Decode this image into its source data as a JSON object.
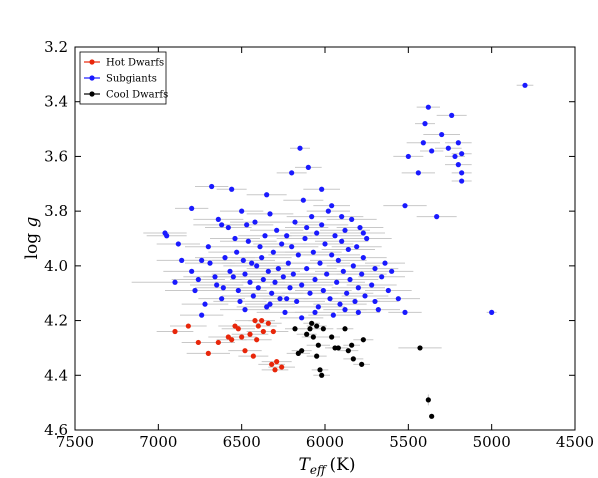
{
  "chart_data": {
    "type": "scatter",
    "title": "",
    "xlabel_symbol": "T",
    "xlabel_subscript": "eff",
    "xlabel_unit": "(K)",
    "ylabel_text": "log ",
    "ylabel_symbol": "g",
    "xlim": [
      7500,
      4500
    ],
    "ylim": [
      3.2,
      4.6
    ],
    "x_inverted": true,
    "y_inverted": true,
    "x_ticks": [
      "7500",
      "7000",
      "6500",
      "6000",
      "5500",
      "5000",
      "4500"
    ],
    "y_ticks": [
      "3.2",
      "3.4",
      "3.6",
      "3.8",
      "4.0",
      "4.2",
      "4.4",
      "4.6"
    ],
    "x_tick_values": [
      7500,
      7000,
      6500,
      6000,
      5500,
      5000,
      4500
    ],
    "y_tick_values": [
      3.2,
      3.4,
      3.6,
      3.8,
      4.0,
      4.2,
      4.4,
      4.6
    ],
    "grid": false,
    "legend_position": "top-left",
    "error_bar_color": "#c8c8c8",
    "series": [
      {
        "name": "Hot Dwarfs",
        "color": "#e8260a",
        "points": [
          [
            6900,
            4.24
          ],
          [
            6820,
            4.22
          ],
          [
            6760,
            4.28
          ],
          [
            6700,
            4.32
          ],
          [
            6640,
            4.28
          ],
          [
            6580,
            4.26
          ],
          [
            6560,
            4.27
          ],
          [
            6540,
            4.22
          ],
          [
            6520,
            4.23
          ],
          [
            6500,
            4.26
          ],
          [
            6480,
            4.31
          ],
          [
            6450,
            4.25
          ],
          [
            6430,
            4.33
          ],
          [
            6420,
            4.2
          ],
          [
            6410,
            4.27
          ],
          [
            6400,
            4.22
          ],
          [
            6380,
            4.2
          ],
          [
            6370,
            4.24
          ],
          [
            6340,
            4.21
          ],
          [
            6320,
            4.36
          ],
          [
            6310,
            4.24
          ],
          [
            6300,
            4.38
          ],
          [
            6290,
            4.35
          ],
          [
            6260,
            4.37
          ]
        ],
        "xerr": [
          110,
          110,
          100,
          130,
          100,
          120,
          90,
          100,
          100,
          90,
          100,
          110,
          90,
          120,
          90,
          110,
          80,
          100,
          80,
          80,
          90,
          80,
          90,
          80
        ]
      },
      {
        "name": "Subgiants",
        "color": "#1a1aff",
        "points": [
          [
            6960,
            3.88
          ],
          [
            6950,
            3.89
          ],
          [
            6900,
            4.06
          ],
          [
            6880,
            3.92
          ],
          [
            6860,
            3.98
          ],
          [
            6800,
            4.02
          ],
          [
            6800,
            3.79
          ],
          [
            6780,
            4.09
          ],
          [
            6760,
            4.05
          ],
          [
            6740,
            3.98
          ],
          [
            6720,
            4.14
          ],
          [
            6700,
            3.93
          ],
          [
            6690,
            3.99
          ],
          [
            6680,
            3.71
          ],
          [
            6660,
            4.04
          ],
          [
            6650,
            4.07
          ],
          [
            6640,
            3.83
          ],
          [
            6620,
            3.85
          ],
          [
            6610,
            4.08
          ],
          [
            6600,
            3.97
          ],
          [
            6580,
            3.86
          ],
          [
            6570,
            4.02
          ],
          [
            6560,
            3.72
          ],
          [
            6550,
            4.04
          ],
          [
            6540,
            3.9
          ],
          [
            6530,
            3.95
          ],
          [
            6520,
            4.09
          ],
          [
            6510,
            4.13
          ],
          [
            6500,
            3.8
          ],
          [
            6490,
            3.98
          ],
          [
            6480,
            4.03
          ],
          [
            6470,
            3.85
          ],
          [
            6460,
            3.91
          ],
          [
            6450,
            4.06
          ],
          [
            6440,
            3.99
          ],
          [
            6430,
            4.11
          ],
          [
            6420,
            3.84
          ],
          [
            6410,
            4.0
          ],
          [
            6400,
            4.08
          ],
          [
            6390,
            3.93
          ],
          [
            6380,
            3.97
          ],
          [
            6370,
            4.05
          ],
          [
            6360,
            3.89
          ],
          [
            6350,
            4.15
          ],
          [
            6340,
            4.02
          ],
          [
            6330,
            3.81
          ],
          [
            6320,
            4.1
          ],
          [
            6310,
            3.95
          ],
          [
            6300,
            4.06
          ],
          [
            6290,
            3.87
          ],
          [
            6280,
            4.01
          ],
          [
            6270,
            4.12
          ],
          [
            6260,
            3.92
          ],
          [
            6250,
            4.04
          ],
          [
            6240,
            4.17
          ],
          [
            6230,
            3.89
          ],
          [
            6220,
            3.99
          ],
          [
            6210,
            4.08
          ],
          [
            6200,
            3.93
          ],
          [
            6190,
            4.03
          ],
          [
            6180,
            3.84
          ],
          [
            6170,
            4.13
          ],
          [
            6160,
            3.96
          ],
          [
            6150,
            3.57
          ],
          [
            6140,
            4.07
          ],
          [
            6130,
            3.76
          ],
          [
            6120,
            3.9
          ],
          [
            6110,
            4.01
          ],
          [
            6100,
            3.64
          ],
          [
            6090,
            4.1
          ],
          [
            6080,
            3.82
          ],
          [
            6070,
            3.95
          ],
          [
            6060,
            4.05
          ],
          [
            6050,
            3.88
          ],
          [
            6040,
            4.15
          ],
          [
            6030,
            3.99
          ],
          [
            6020,
            3.85
          ],
          [
            6010,
            4.09
          ],
          [
            6000,
            3.92
          ],
          [
            5990,
            4.03
          ],
          [
            5980,
            3.8
          ],
          [
            5970,
            4.12
          ],
          [
            5960,
            3.96
          ],
          [
            5950,
            4.18
          ],
          [
            5940,
            3.89
          ],
          [
            5930,
            4.06
          ],
          [
            5920,
            3.98
          ],
          [
            5910,
            4.14
          ],
          [
            5900,
            3.91
          ],
          [
            5890,
            4.02
          ],
          [
            5880,
            3.87
          ],
          [
            5870,
            4.1
          ],
          [
            5860,
            3.94
          ],
          [
            5850,
            4.05
          ],
          [
            5840,
            3.83
          ],
          [
            5830,
            4.0
          ],
          [
            5820,
            4.13
          ],
          [
            5810,
            3.93
          ],
          [
            5800,
            4.08
          ],
          [
            5790,
            3.86
          ],
          [
            5780,
            4.03
          ],
          [
            5770,
            3.97
          ],
          [
            5760,
            4.11
          ],
          [
            5750,
            3.9
          ],
          [
            5720,
            4.07
          ],
          [
            5700,
            4.01
          ],
          [
            5680,
            4.16
          ],
          [
            5660,
            4.04
          ],
          [
            5640,
            3.99
          ],
          [
            5620,
            4.09
          ],
          [
            5600,
            4.02
          ],
          [
            5560,
            4.12
          ],
          [
            5520,
            4.17
          ],
          [
            5520,
            3.78
          ],
          [
            5500,
            3.6
          ],
          [
            5440,
            3.66
          ],
          [
            5410,
            3.55
          ],
          [
            5400,
            3.48
          ],
          [
            5380,
            3.42
          ],
          [
            5360,
            3.58
          ],
          [
            5330,
            3.82
          ],
          [
            5300,
            3.52
          ],
          [
            5260,
            3.57
          ],
          [
            5240,
            3.45
          ],
          [
            5220,
            3.6
          ],
          [
            5200,
            3.55
          ],
          [
            5200,
            3.63
          ],
          [
            5180,
            3.59
          ],
          [
            5180,
            3.66
          ],
          [
            5180,
            3.69
          ],
          [
            5000,
            4.17
          ],
          [
            4800,
            3.34
          ],
          [
            6020,
            3.72
          ],
          [
            5960,
            3.78
          ],
          [
            6200,
            3.66
          ],
          [
            6350,
            3.74
          ],
          [
            5880,
            4.16
          ],
          [
            6060,
            4.17
          ],
          [
            6140,
            4.19
          ],
          [
            6480,
            4.16
          ],
          [
            6620,
            4.12
          ],
          [
            6740,
            4.18
          ],
          [
            5700,
            4.13
          ],
          [
            5800,
            4.17
          ],
          [
            5900,
            3.82
          ],
          [
            5770,
            3.88
          ],
          [
            6330,
            4.14
          ],
          [
            6230,
            4.12
          ],
          [
            6110,
            3.86
          ]
        ],
        "xerr": [
          130,
          120,
          260,
          130,
          150,
          170,
          100,
          180,
          160,
          150,
          140,
          140,
          150,
          100,
          190,
          160,
          150,
          170,
          170,
          180,
          140,
          200,
          90,
          180,
          150,
          170,
          170,
          160,
          130,
          190,
          200,
          160,
          170,
          210,
          180,
          190,
          150,
          200,
          190,
          170,
          180,
          200,
          160,
          180,
          190,
          140,
          190,
          170,
          200,
          160,
          190,
          170,
          170,
          200,
          170,
          150,
          180,
          190,
          160,
          190,
          150,
          170,
          180,
          60,
          190,
          120,
          170,
          180,
          80,
          170,
          150,
          170,
          180,
          160,
          160,
          180,
          160,
          170,
          170,
          180,
          130,
          160,
          170,
          150,
          160,
          170,
          170,
          160,
          160,
          170,
          150,
          160,
          160,
          170,
          150,
          160,
          150,
          150,
          160,
          140,
          150,
          140,
          140,
          150,
          150,
          140,
          130,
          140,
          120,
          140,
          130,
          130,
          100,
          130,
          90,
          100,
          100,
          60,
          70,
          70,
          120,
          110,
          80,
          90,
          60,
          80,
          80,
          60,
          60,
          60,
          30,
          50,
          110,
          110,
          90,
          120,
          130,
          120,
          130,
          150,
          140,
          130,
          140,
          130,
          130,
          130,
          150,
          140,
          130
        ]
      },
      {
        "name": "Cool Dwarfs",
        "color": "#000000",
        "points": [
          [
            6180,
            4.23
          ],
          [
            6160,
            4.32
          ],
          [
            6140,
            4.31
          ],
          [
            6110,
            4.25
          ],
          [
            6090,
            4.23
          ],
          [
            6080,
            4.21
          ],
          [
            6070,
            4.26
          ],
          [
            6050,
            4.22
          ],
          [
            6050,
            4.33
          ],
          [
            6040,
            4.29
          ],
          [
            6030,
            4.38
          ],
          [
            6020,
            4.4
          ],
          [
            6010,
            4.23
          ],
          [
            5960,
            4.26
          ],
          [
            5940,
            4.3
          ],
          [
            5920,
            4.3
          ],
          [
            5880,
            4.23
          ],
          [
            5860,
            4.31
          ],
          [
            5840,
            4.29
          ],
          [
            5830,
            4.34
          ],
          [
            5780,
            4.36
          ],
          [
            5770,
            4.27
          ],
          [
            5430,
            4.3
          ],
          [
            5380,
            4.49
          ],
          [
            5360,
            4.55
          ]
        ],
        "xerr": [
          60,
          70,
          60,
          60,
          60,
          50,
          70,
          60,
          60,
          70,
          50,
          50,
          60,
          50,
          60,
          60,
          50,
          60,
          50,
          60,
          50,
          60,
          130,
          0,
          0
        ],
        "yerr": [
          0,
          0,
          0,
          0,
          0,
          0,
          0,
          0,
          0,
          0,
          0,
          0,
          0,
          0,
          0,
          0,
          0,
          0,
          0,
          0,
          0,
          0,
          0,
          0.02,
          0
        ]
      }
    ]
  }
}
